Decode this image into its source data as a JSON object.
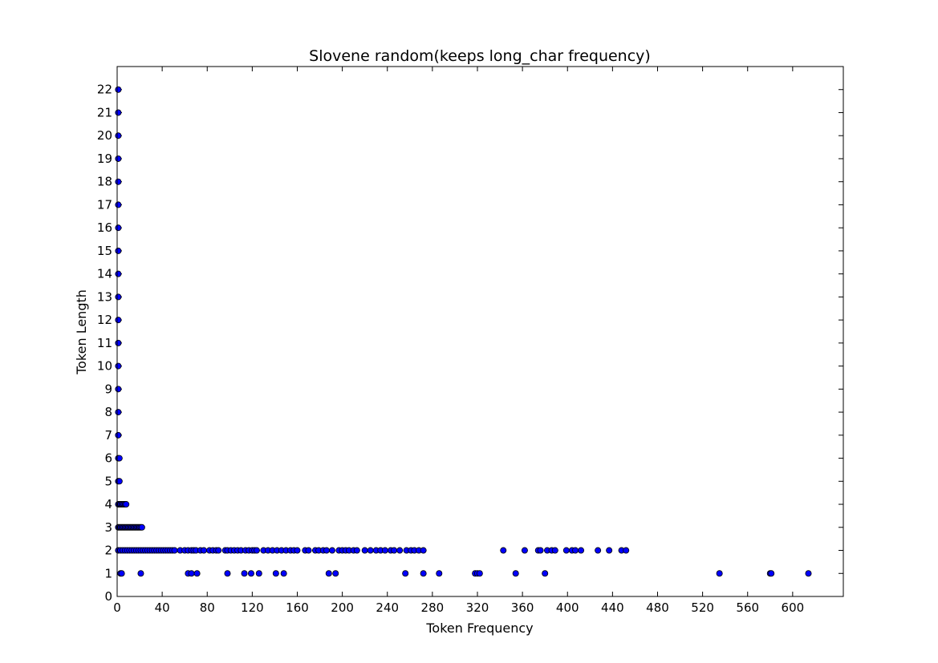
{
  "chart_data": {
    "type": "scatter",
    "title": "Slovene random(keeps long_char frequency)",
    "xlabel": "Token Frequency",
    "ylabel": "Token Length",
    "xlim": [
      0,
      645
    ],
    "ylim": [
      0,
      23
    ],
    "xticks": [
      0,
      40,
      80,
      120,
      160,
      200,
      240,
      280,
      320,
      360,
      400,
      440,
      480,
      520,
      560,
      600
    ],
    "yticks": [
      0,
      1,
      2,
      3,
      4,
      5,
      6,
      7,
      8,
      9,
      10,
      11,
      12,
      13,
      14,
      15,
      16,
      17,
      18,
      19,
      20,
      21,
      22
    ],
    "grid": false,
    "legend": "none",
    "marker_color": "#0000ff",
    "marker_edge_color": "#000000",
    "series": [
      {
        "points": [
          [
            1,
            22
          ],
          [
            1,
            21
          ],
          [
            1,
            20
          ],
          [
            1,
            19
          ],
          [
            1,
            18
          ],
          [
            1,
            17
          ],
          [
            1,
            16
          ],
          [
            1,
            15
          ],
          [
            1,
            14
          ],
          [
            1,
            13
          ],
          [
            1,
            12
          ],
          [
            1,
            11
          ],
          [
            1,
            10
          ],
          [
            1,
            9
          ],
          [
            1,
            8
          ],
          [
            1,
            7
          ],
          [
            1,
            6
          ],
          [
            2,
            6
          ],
          [
            1,
            5
          ],
          [
            2,
            5
          ],
          [
            1,
            4
          ],
          [
            2,
            4
          ],
          [
            3,
            4
          ],
          [
            4,
            4
          ],
          [
            5,
            4
          ],
          [
            6,
            4
          ],
          [
            7,
            4
          ],
          [
            8,
            4
          ],
          [
            1,
            3
          ],
          [
            2,
            3
          ],
          [
            3,
            3
          ],
          [
            4,
            3
          ],
          [
            5,
            3
          ],
          [
            6,
            3
          ],
          [
            7,
            3
          ],
          [
            8,
            3
          ],
          [
            9,
            3
          ],
          [
            10,
            3
          ],
          [
            11,
            3
          ],
          [
            12,
            3
          ],
          [
            13,
            3
          ],
          [
            14,
            3
          ],
          [
            15,
            3
          ],
          [
            16,
            3
          ],
          [
            17,
            3
          ],
          [
            18,
            3
          ],
          [
            19,
            3
          ],
          [
            20,
            3
          ],
          [
            21,
            3
          ],
          [
            22,
            3
          ],
          [
            1,
            2
          ],
          [
            3,
            2
          ],
          [
            5,
            2
          ],
          [
            7,
            2
          ],
          [
            9,
            2
          ],
          [
            11,
            2
          ],
          [
            13,
            2
          ],
          [
            15,
            2
          ],
          [
            17,
            2
          ],
          [
            19,
            2
          ],
          [
            21,
            2
          ],
          [
            23,
            2
          ],
          [
            25,
            2
          ],
          [
            27,
            2
          ],
          [
            29,
            2
          ],
          [
            31,
            2
          ],
          [
            33,
            2
          ],
          [
            35,
            2
          ],
          [
            37,
            2
          ],
          [
            39,
            2
          ],
          [
            41,
            2
          ],
          [
            43,
            2
          ],
          [
            45,
            2
          ],
          [
            47,
            2
          ],
          [
            49,
            2
          ],
          [
            51,
            2
          ],
          [
            56,
            2
          ],
          [
            60,
            2
          ],
          [
            63,
            2
          ],
          [
            66,
            2
          ],
          [
            68,
            2
          ],
          [
            70,
            2
          ],
          [
            74,
            2
          ],
          [
            77,
            2
          ],
          [
            82,
            2
          ],
          [
            85,
            2
          ],
          [
            88,
            2
          ],
          [
            90,
            2
          ],
          [
            96,
            2
          ],
          [
            98,
            2
          ],
          [
            101,
            2
          ],
          [
            104,
            2
          ],
          [
            107,
            2
          ],
          [
            110,
            2
          ],
          [
            114,
            2
          ],
          [
            117,
            2
          ],
          [
            120,
            2
          ],
          [
            122,
            2
          ],
          [
            124,
            2
          ],
          [
            130,
            2
          ],
          [
            134,
            2
          ],
          [
            138,
            2
          ],
          [
            142,
            2
          ],
          [
            146,
            2
          ],
          [
            150,
            2
          ],
          [
            154,
            2
          ],
          [
            157,
            2
          ],
          [
            160,
            2
          ],
          [
            167,
            2
          ],
          [
            170,
            2
          ],
          [
            176,
            2
          ],
          [
            179,
            2
          ],
          [
            183,
            2
          ],
          [
            186,
            2
          ],
          [
            191,
            2
          ],
          [
            197,
            2
          ],
          [
            200,
            2
          ],
          [
            203,
            2
          ],
          [
            206,
            2
          ],
          [
            210,
            2
          ],
          [
            213,
            2
          ],
          [
            220,
            2
          ],
          [
            225,
            2
          ],
          [
            230,
            2
          ],
          [
            234,
            2
          ],
          [
            238,
            2
          ],
          [
            243,
            2
          ],
          [
            246,
            2
          ],
          [
            251,
            2
          ],
          [
            257,
            2
          ],
          [
            261,
            2
          ],
          [
            264,
            2
          ],
          [
            268,
            2
          ],
          [
            272,
            2
          ],
          [
            343,
            2
          ],
          [
            362,
            2
          ],
          [
            374,
            2
          ],
          [
            376,
            2
          ],
          [
            382,
            2
          ],
          [
            386,
            2
          ],
          [
            389,
            2
          ],
          [
            399,
            2
          ],
          [
            404,
            2
          ],
          [
            407,
            2
          ],
          [
            412,
            2
          ],
          [
            427,
            2
          ],
          [
            437,
            2
          ],
          [
            448,
            2
          ],
          [
            452,
            2
          ],
          [
            3,
            1
          ],
          [
            4,
            1
          ],
          [
            21,
            1
          ],
          [
            63,
            1
          ],
          [
            66,
            1
          ],
          [
            71,
            1
          ],
          [
            98,
            1
          ],
          [
            113,
            1
          ],
          [
            119,
            1
          ],
          [
            126,
            1
          ],
          [
            141,
            1
          ],
          [
            148,
            1
          ],
          [
            188,
            1
          ],
          [
            194,
            1
          ],
          [
            256,
            1
          ],
          [
            272,
            1
          ],
          [
            286,
            1
          ],
          [
            318,
            1
          ],
          [
            320,
            1
          ],
          [
            322,
            1
          ],
          [
            354,
            1
          ],
          [
            380,
            1
          ],
          [
            535,
            1
          ],
          [
            580,
            1
          ],
          [
            581,
            1
          ],
          [
            614,
            1
          ]
        ]
      }
    ]
  }
}
